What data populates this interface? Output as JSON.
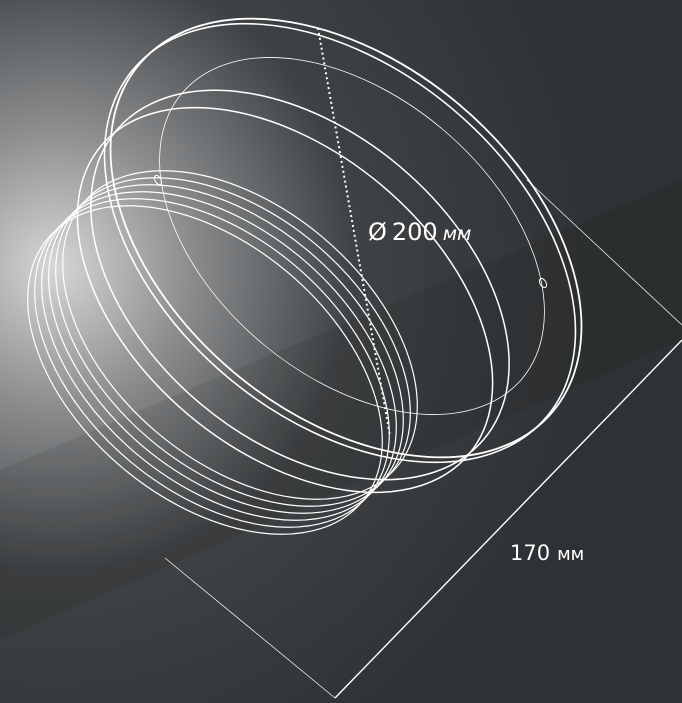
{
  "dimensions": {
    "diameter": {
      "symbol": "Ø",
      "value": "200",
      "unit": "мм"
    },
    "length": {
      "value": "170",
      "unit": "мм"
    }
  }
}
